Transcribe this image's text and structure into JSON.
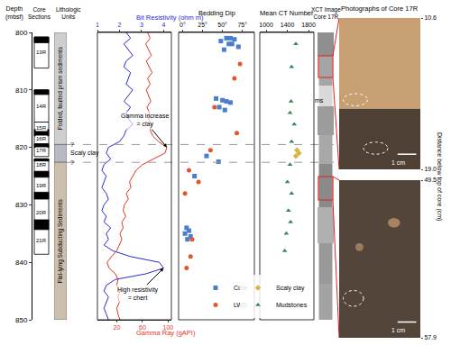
{
  "chart_data": [
    {
      "type": "core_sections",
      "title_lines": [
        "Core",
        "Sections"
      ],
      "ylabel_lines": [
        "Depth",
        "(mbsf)"
      ],
      "ylim": [
        800,
        850
      ],
      "yticks": [
        800,
        810,
        820,
        830,
        840,
        850
      ],
      "grid": false,
      "cores": [
        {
          "name": "13R",
          "top": 800.8,
          "bottom": 806.2,
          "recovered": [
            [
              800.8,
              801.8
            ]
          ]
        },
        {
          "name": "14R",
          "top": 810.0,
          "bottom": 815.6,
          "recovered": [
            [
              810.0,
              810.8
            ]
          ]
        },
        {
          "name": "15R",
          "top": 815.6,
          "bottom": 817.5,
          "recovered": [
            [
              816.9,
              817.5
            ]
          ]
        },
        {
          "name": "16R",
          "top": 817.5,
          "bottom": 819.4,
          "recovered": [
            [
              817.5,
              818.0
            ]
          ]
        },
        {
          "name": "17R",
          "top": 819.4,
          "bottom": 821.6,
          "recovered": [
            [
              819.4,
              820.0
            ]
          ]
        },
        {
          "name": "18R",
          "top": 822.0,
          "bottom": 824.2,
          "recovered": [
            [
              822.0,
              822.4
            ]
          ]
        },
        {
          "name": "19R",
          "top": 824.2,
          "bottom": 829.0,
          "recovered": [
            [
              824.2,
              825.2
            ],
            [
              827.8,
              829.0
            ]
          ]
        },
        {
          "name": "20R",
          "top": 829.0,
          "bottom": 833.8,
          "recovered": [
            [
              832.6,
              833.8
            ]
          ]
        },
        {
          "name": "21R",
          "top": 833.8,
          "bottom": 838.6,
          "recovered": [
            [
              833.8,
              834.3
            ]
          ]
        }
      ]
    },
    {
      "type": "lithology",
      "title_lines": [
        "Lithologic",
        "Units"
      ],
      "units": [
        {
          "label": "Folded, faulted prism sediments",
          "top": 800,
          "bottom": 819.5,
          "color": "#cfcfcf"
        },
        {
          "label": "Scaly clay",
          "top": 819.5,
          "bottom": 822.6,
          "color": "#b9b9c4"
        },
        {
          "label": "Flat-lying Subducting Sediments",
          "top": 822.6,
          "bottom": 850,
          "color": "#cdbfae"
        }
      ],
      "uncertain_label": "?",
      "dashed_lines": [
        819.5,
        822.6
      ]
    },
    {
      "type": "line",
      "y": [
        800,
        801,
        802,
        803,
        804,
        805,
        806,
        807,
        808,
        809,
        810,
        811,
        812,
        813,
        814,
        815,
        816,
        817,
        818,
        819,
        820,
        821,
        822,
        823,
        824,
        825,
        826,
        827,
        828,
        829,
        830,
        831,
        832,
        833,
        834,
        835,
        836,
        837,
        838,
        839,
        840,
        841,
        842,
        843,
        844,
        845,
        846,
        847,
        848,
        849,
        850
      ],
      "series": [
        {
          "name": "Bit Resistivity (ohm m)",
          "color": "#2a2ad4",
          "axis": "top",
          "xlim": [
            1,
            4.35
          ],
          "xticks": [
            1,
            2,
            3,
            4
          ],
          "values": [
            2.3,
            2.5,
            2.2,
            2.4,
            2.6,
            2.3,
            2.2,
            2.5,
            2.4,
            2.3,
            2.6,
            2.4,
            2.2,
            2.5,
            2.3,
            2.4,
            2.6,
            2.3,
            2.2,
            2.0,
            1.5,
            1.4,
            1.6,
            1.3,
            1.2,
            1.4,
            1.3,
            1.2,
            1.4,
            1.5,
            1.3,
            1.2,
            1.4,
            1.3,
            1.6,
            1.4,
            1.5,
            1.3,
            1.7,
            2.5,
            3.8,
            4.0,
            3.2,
            1.8,
            1.4,
            1.3,
            1.5,
            1.4,
            1.3,
            1.4,
            1.5
          ]
        },
        {
          "name": "Gamma Ray (gAPI)",
          "color": "#e2341f",
          "axis": "bottom",
          "xlim": [
            -10,
            105
          ],
          "xticks": [
            20,
            60,
            100
          ],
          "values": [
            68,
            72,
            65,
            70,
            74,
            66,
            70,
            75,
            68,
            72,
            66,
            70,
            73,
            67,
            71,
            69,
            74,
            72,
            76,
            85,
            98,
            95,
            78,
            60,
            50,
            45,
            40,
            42,
            35,
            38,
            32,
            30,
            34,
            28,
            30,
            25,
            28,
            24,
            20,
            12,
            5,
            8,
            18,
            22,
            20,
            25,
            22,
            24,
            20,
            22,
            25
          ]
        }
      ],
      "annotations": [
        {
          "lines": [
            "Gamma increase",
            "= clay"
          ],
          "series": "Gamma Ray (gAPI)"
        },
        {
          "lines": [
            "High resistivity",
            "= chert"
          ],
          "series": "Bit Resistivity (ohm m)"
        }
      ]
    },
    {
      "type": "scatter",
      "title": "Bedding Dip",
      "xlim": [
        -5,
        90
      ],
      "xticks": [
        {
          "value": 0,
          "label": "0°"
        },
        {
          "value": 25,
          "label": "25°"
        },
        {
          "value": 50,
          "label": "50°"
        },
        {
          "value": 75,
          "label": "75°"
        }
      ],
      "legend": "lower right",
      "series": [
        {
          "name": "Core",
          "color": "#4a7fcf",
          "marker": "square",
          "x": [
            55,
            60,
            65,
            48,
            58,
            62,
            70,
            52,
            42,
            50,
            55,
            60,
            46,
            53,
            30,
            45,
            15,
            5,
            8,
            3,
            10,
            6
          ],
          "y": [
            801,
            801,
            801.2,
            801.5,
            802,
            802,
            802.5,
            803,
            811.5,
            811.8,
            812,
            812.2,
            813,
            813.5,
            821.5,
            822.5,
            825,
            834,
            834.5,
            835,
            835.5,
            836
          ]
        },
        {
          "name": "LWD",
          "color": "#e8542c",
          "marker": "circle",
          "x": [
            72,
            65,
            40,
            68,
            35,
            8,
            20,
            3,
            12,
            10,
            5
          ],
          "y": [
            805.5,
            808,
            813,
            817.5,
            820.5,
            824,
            826,
            828,
            836,
            839,
            841
          ]
        }
      ]
    },
    {
      "type": "scatter",
      "title": "Mean CT Number",
      "xlim": [
        880,
        1900
      ],
      "xticks": [
        1000,
        1400,
        1800
      ],
      "legend": "lower right",
      "series": [
        {
          "name": "Scaly clay",
          "color": "#d7b545",
          "marker": "diamond",
          "x": [
            1580,
            1620,
            1560
          ],
          "y": [
            820.5,
            821,
            821.5
          ]
        },
        {
          "name": "Mudstones",
          "color": "#2e8b57",
          "marker": "triangle",
          "x": [
            1560,
            1480,
            1470,
            1450,
            1530,
            1480,
            1450,
            1400,
            1480,
            1420,
            1460,
            1380,
            1350
          ],
          "y": [
            802,
            806,
            812,
            814,
            816,
            819,
            823,
            826,
            828,
            831,
            833,
            835,
            838
          ]
        }
      ]
    },
    {
      "type": "image",
      "title_lines": [
        "XCT Image",
        "Core 17R"
      ],
      "label": "ms"
    },
    {
      "type": "image",
      "title": "Photographs of Core 17R",
      "ylabel": "Distance below top of core (cm)",
      "panels": [
        {
          "ylim": [
            10.6,
            19
          ],
          "yticks": [
            10.6,
            {
              "value": 19,
              "label": "19.0"
            }
          ],
          "scale_label": "1 cm"
        },
        {
          "ylim": [
            49.5,
            57.9
          ],
          "yticks": [
            49.5,
            57.9
          ],
          "scale_label": "1 cm"
        }
      ]
    }
  ]
}
